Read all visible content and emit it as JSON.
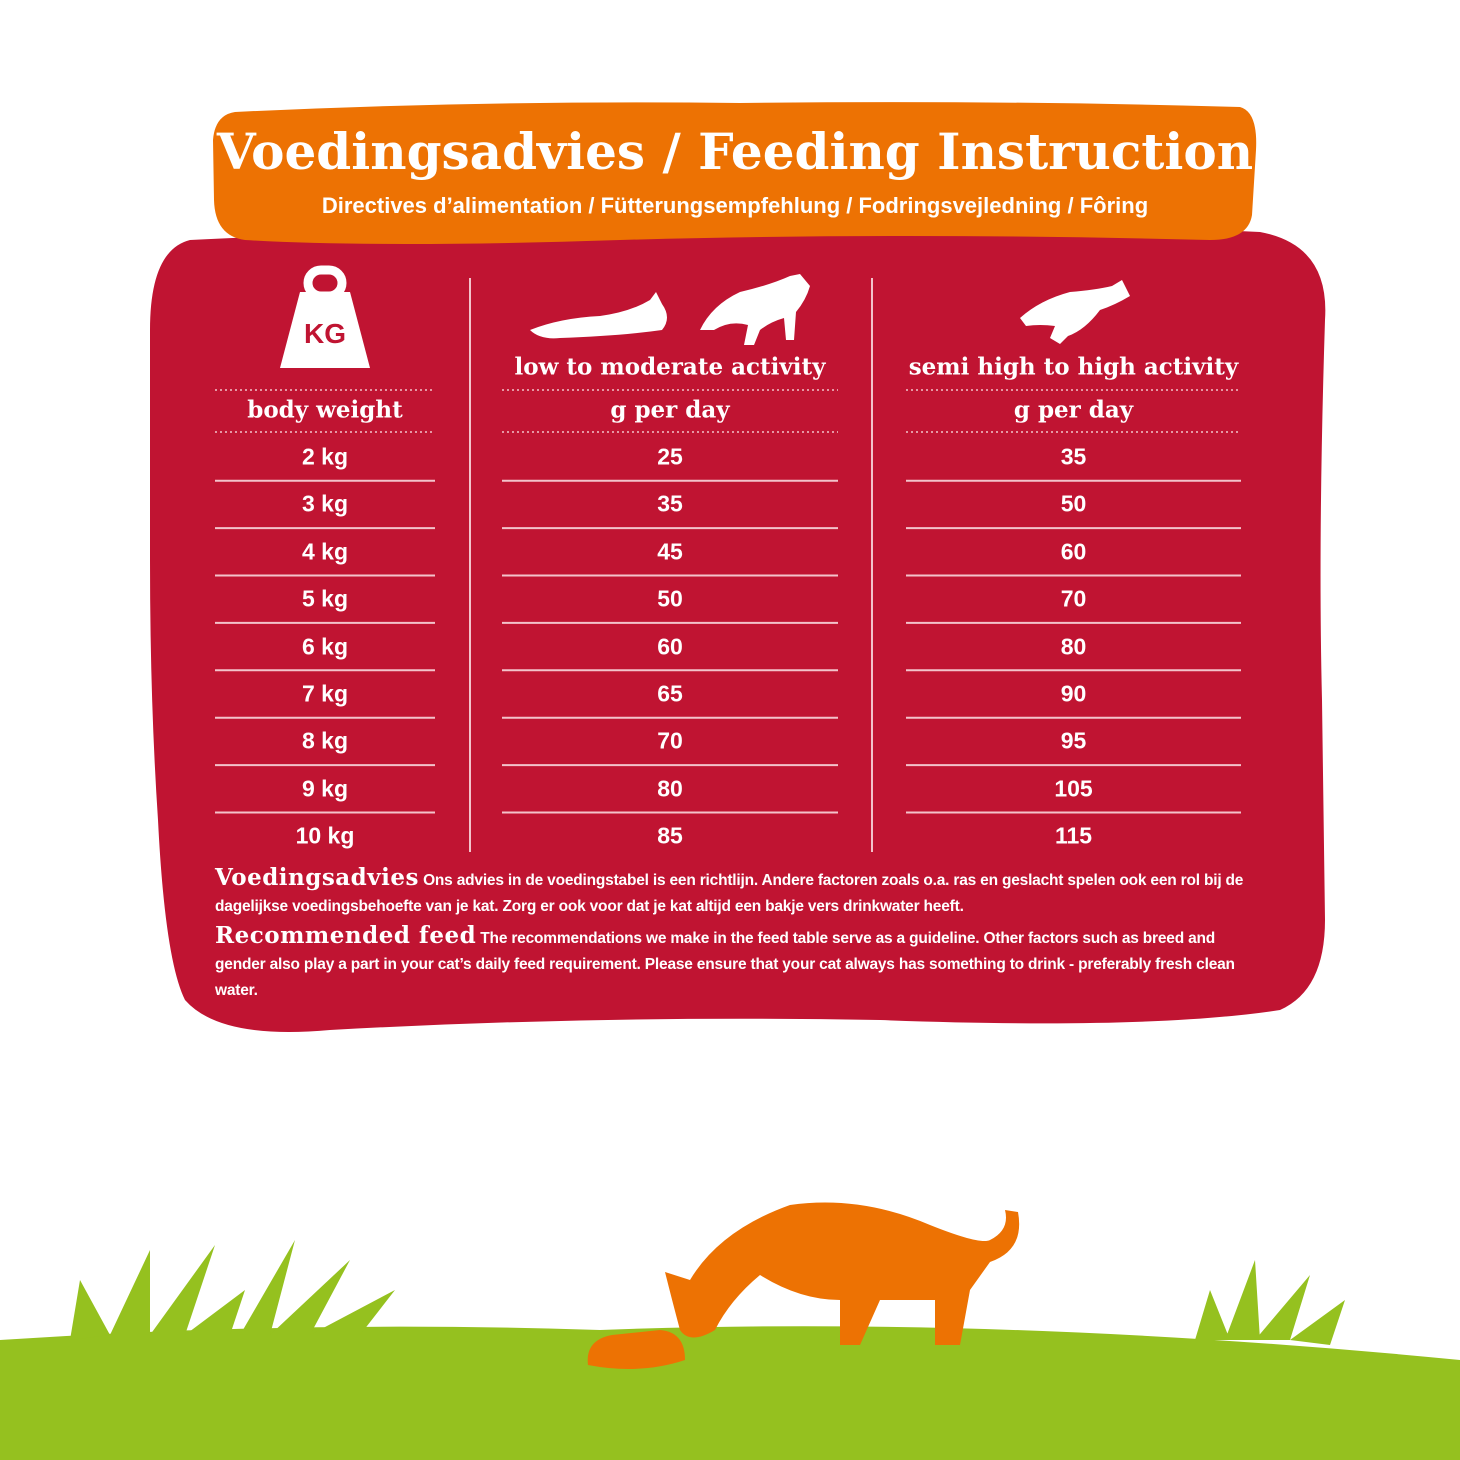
{
  "header": {
    "title": "Voedingsadvies / Feeding Instruction",
    "subtitle": "Directives d’alimentation / Fütterungsempfehlung / Fodringsvejledning / Fôring"
  },
  "table": {
    "icon_label": "KG",
    "activity_headers": [
      "low to moderate activity",
      "semi high to high activity"
    ],
    "columns": [
      "body weight",
      "g per day",
      "g per day"
    ],
    "rows": [
      [
        "2 kg",
        25,
        35
      ],
      [
        "3 kg",
        35,
        50
      ],
      [
        "4 kg",
        45,
        60
      ],
      [
        "5 kg",
        50,
        70
      ],
      [
        "6 kg",
        60,
        80
      ],
      [
        "7 kg",
        65,
        90
      ],
      [
        "8 kg",
        70,
        95
      ],
      [
        "9 kg",
        80,
        105
      ],
      [
        "10 kg",
        85,
        115
      ]
    ]
  },
  "notes": [
    {
      "heading": "Voedingsadvies",
      "text": "Ons advies in de voedingstabel is een richtlijn. Andere factoren zoals o.a. ras en geslacht spelen ook een rol bij de dagelijkse voedingsbehoefte van je kat. Zorg er ook voor dat je kat altijd een bakje vers drinkwater heeft."
    },
    {
      "heading": "Recommended feed",
      "text": "The recommendations we make in the feed table serve as a guideline. Other factors such as breed and gender also play a part in your cat’s daily feed requirement. Please ensure that your cat always has something to drink - preferably fresh clean water."
    }
  ]
}
